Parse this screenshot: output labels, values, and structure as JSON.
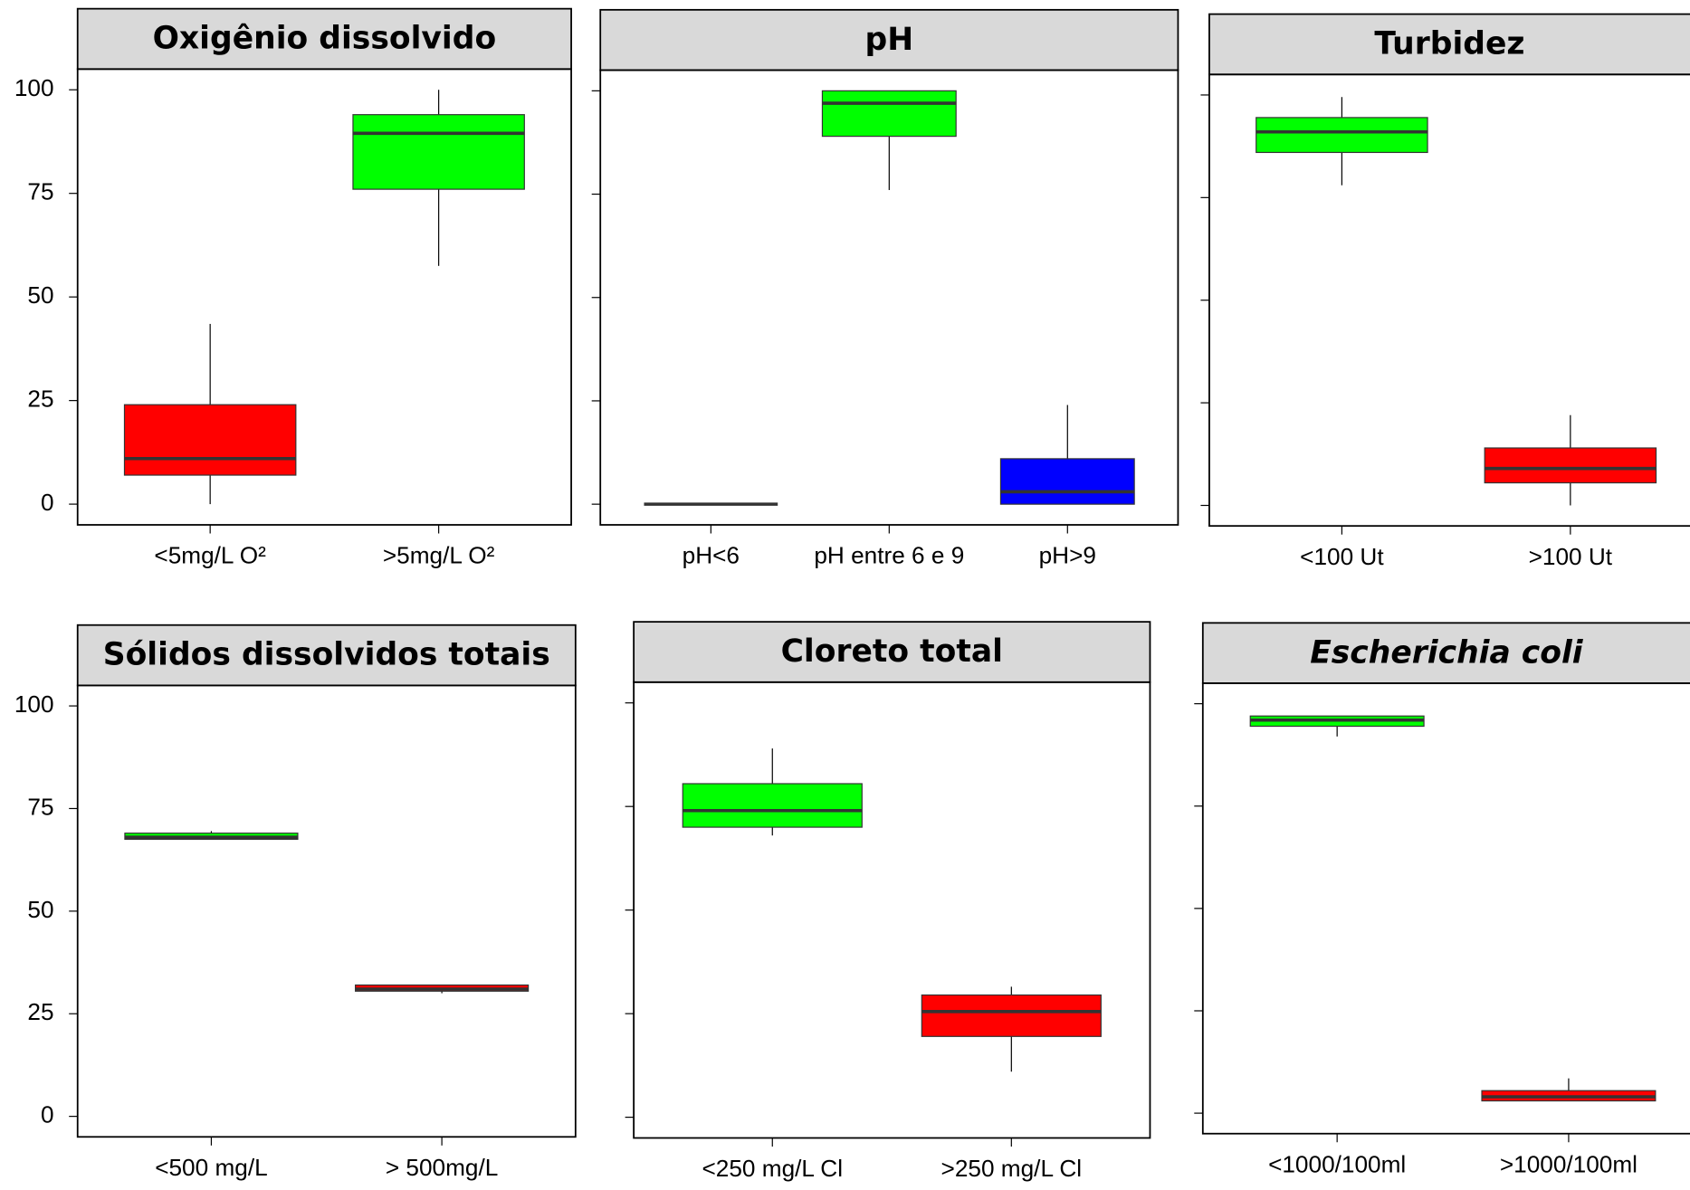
{
  "chart_data": [
    {
      "type": "box",
      "title": "Oxigênio dissolvido",
      "title_italic": false,
      "show_ytick_labels": true,
      "categories": [
        "<5mg/L O²",
        ">5mg/L O²"
      ],
      "boxes": [
        {
          "min": 0,
          "q1": 7,
          "median": 11,
          "q3": 24,
          "max": 43.5,
          "color": "#ff0000"
        },
        {
          "min": 57.5,
          "q1": 76,
          "median": 89.5,
          "q3": 94,
          "max": 100,
          "color": "#00ff00"
        }
      ],
      "ylim": [
        -5,
        105
      ],
      "yticks": [
        0,
        25,
        50,
        75,
        100
      ]
    },
    {
      "type": "box",
      "title": "pH",
      "title_italic": false,
      "show_ytick_labels": false,
      "categories": [
        "pH<6",
        "pH entre 6 e 9",
        "pH>9"
      ],
      "boxes": [
        {
          "min": 0,
          "q1": 0,
          "median": 0,
          "q3": 0,
          "max": 0,
          "color": "#ff0000"
        },
        {
          "min": 76,
          "q1": 89,
          "median": 97,
          "q3": 100,
          "max": 100,
          "color": "#00ff00"
        },
        {
          "min": 0,
          "q1": 0,
          "median": 3,
          "q3": 11,
          "max": 24,
          "color": "#0000ff"
        }
      ],
      "ylim": [
        -5,
        105
      ],
      "yticks": [
        0,
        25,
        50,
        75,
        100
      ]
    },
    {
      "type": "box",
      "title": "Turbidez",
      "title_italic": false,
      "show_ytick_labels": false,
      "categories": [
        "<100 Ut",
        ">100 Ut"
      ],
      "boxes": [
        {
          "min": 78,
          "q1": 86,
          "median": 91,
          "q3": 94.5,
          "max": 99.5,
          "color": "#00ff00"
        },
        {
          "min": 0,
          "q1": 5.5,
          "median": 9,
          "q3": 14,
          "max": 22,
          "color": "#ff0000"
        }
      ],
      "ylim": [
        -5,
        105
      ],
      "yticks": [
        0,
        25,
        50,
        75,
        100
      ]
    },
    {
      "type": "box",
      "title": "Sólidos dissolvidos totais",
      "title_italic": false,
      "show_ytick_labels": true,
      "categories": [
        "<500 mg/L",
        "> 500mg/L"
      ],
      "boxes": [
        {
          "min": 67.5,
          "q1": 67.5,
          "median": 68,
          "q3": 69,
          "max": 69.5,
          "color": "#00ff00"
        },
        {
          "min": 30,
          "q1": 30.5,
          "median": 31,
          "q3": 32,
          "max": 32,
          "color": "#ff0000"
        }
      ],
      "ylim": [
        -5,
        105
      ],
      "yticks": [
        0,
        25,
        50,
        75,
        100
      ]
    },
    {
      "type": "box",
      "title": "Cloreto total",
      "title_italic": false,
      "show_ytick_labels": false,
      "categories": [
        "<250 mg/L Cl",
        ">250 mg/L Cl"
      ],
      "boxes": [
        {
          "min": 68,
          "q1": 70,
          "median": 74,
          "q3": 80.5,
          "max": 89,
          "color": "#00ff00"
        },
        {
          "min": 11,
          "q1": 19.5,
          "median": 25.5,
          "q3": 29.5,
          "max": 31.5,
          "color": "#ff0000"
        }
      ],
      "ylim": [
        -5,
        105
      ],
      "yticks": [
        0,
        25,
        50,
        75,
        100
      ]
    },
    {
      "type": "box",
      "title": "Escherichia coli",
      "title_italic": true,
      "show_ytick_labels": false,
      "categories": [
        "<1000/100ml",
        ">1000/100ml"
      ],
      "boxes": [
        {
          "min": 92,
          "q1": 94.5,
          "median": 96,
          "q3": 97,
          "max": 97,
          "color": "#00ff00"
        },
        {
          "min": 3,
          "q1": 3,
          "median": 4,
          "q3": 5.5,
          "max": 8.5,
          "color": "#ff0000"
        }
      ],
      "ylim": [
        -5,
        105
      ],
      "yticks": [
        0,
        25,
        50,
        75,
        100
      ]
    }
  ]
}
